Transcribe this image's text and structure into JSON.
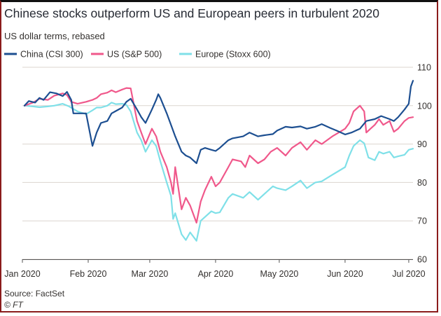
{
  "header": {
    "title": "Chinese stocks outperform US and European peers in turbulent 2020",
    "subtitle": "US dollar terms, rebased"
  },
  "footer": {
    "source": "Source: FactSet",
    "credit": "© FT"
  },
  "colors": {
    "china": "#1d4f91",
    "us": "#f0588b",
    "europe": "#7fe0e8",
    "grid": "#dcd5cf",
    "axis": "#555555",
    "text": "#33302e"
  },
  "chart_data": {
    "type": "line",
    "title": "Chinese stocks outperform US and European peers in turbulent 2020",
    "subtitle": "US dollar terms, rebased",
    "xlim": [
      "2020-01-01",
      "2020-07-03"
    ],
    "ylim": [
      60,
      110
    ],
    "yticks": [
      60,
      70,
      80,
      90,
      100,
      110
    ],
    "xticks": [
      {
        "date": "2020-01-01",
        "label": "Jan 2020"
      },
      {
        "date": "2020-02-01",
        "label": "Feb 2020"
      },
      {
        "date": "2020-03-01",
        "label": "Mar 2020"
      },
      {
        "date": "2020-04-01",
        "label": "Apr 2020"
      },
      {
        "date": "2020-05-01",
        "label": "May 2020"
      },
      {
        "date": "2020-06-01",
        "label": "Jun 2020"
      },
      {
        "date": "2020-07-01",
        "label": "Jul 2020"
      }
    ],
    "grid": true,
    "legend": "top-left",
    "series": [
      {
        "name": "China (CSI 300)",
        "color_key": "china",
        "points": [
          [
            "2020-01-02",
            100.0
          ],
          [
            "2020-01-04",
            101.2
          ],
          [
            "2020-01-07",
            100.8
          ],
          [
            "2020-01-09",
            102.0
          ],
          [
            "2020-01-11",
            101.5
          ],
          [
            "2020-01-14",
            103.5
          ],
          [
            "2020-01-17",
            103.2
          ],
          [
            "2020-01-20",
            102.5
          ],
          [
            "2020-01-22",
            103.6
          ],
          [
            "2020-01-24",
            101.5
          ],
          [
            "2020-01-25",
            98.0
          ],
          [
            "2020-01-29",
            98.0
          ],
          [
            "2020-01-31",
            98.0
          ],
          [
            "2020-02-03",
            89.5
          ],
          [
            "2020-02-05",
            93.0
          ],
          [
            "2020-02-07",
            95.5
          ],
          [
            "2020-02-10",
            96.0
          ],
          [
            "2020-02-12",
            98.0
          ],
          [
            "2020-02-14",
            98.6
          ],
          [
            "2020-02-17",
            99.5
          ],
          [
            "2020-02-19",
            101.0
          ],
          [
            "2020-02-21",
            101.8
          ],
          [
            "2020-02-24",
            99.0
          ],
          [
            "2020-02-26",
            97.0
          ],
          [
            "2020-02-28",
            95.5
          ],
          [
            "2020-03-02",
            99.0
          ],
          [
            "2020-03-04",
            101.5
          ],
          [
            "2020-03-05",
            103.0
          ],
          [
            "2020-03-06",
            102.0
          ],
          [
            "2020-03-09",
            98.0
          ],
          [
            "2020-03-11",
            95.0
          ],
          [
            "2020-03-13",
            92.0
          ],
          [
            "2020-03-16",
            88.0
          ],
          [
            "2020-03-18",
            87.0
          ],
          [
            "2020-03-20",
            86.5
          ],
          [
            "2020-03-23",
            85.0
          ],
          [
            "2020-03-25",
            88.5
          ],
          [
            "2020-03-27",
            89.0
          ],
          [
            "2020-03-30",
            88.5
          ],
          [
            "2020-04-01",
            88.2
          ],
          [
            "2020-04-03",
            89.0
          ],
          [
            "2020-04-07",
            91.0
          ],
          [
            "2020-04-09",
            91.5
          ],
          [
            "2020-04-14",
            92.0
          ],
          [
            "2020-04-17",
            93.0
          ],
          [
            "2020-04-21",
            92.0
          ],
          [
            "2020-04-24",
            92.3
          ],
          [
            "2020-04-28",
            92.6
          ],
          [
            "2020-04-30",
            93.5
          ],
          [
            "2020-05-04",
            94.5
          ],
          [
            "2020-05-07",
            94.3
          ],
          [
            "2020-05-11",
            94.6
          ],
          [
            "2020-05-14",
            94.0
          ],
          [
            "2020-05-18",
            94.5
          ],
          [
            "2020-05-21",
            95.2
          ],
          [
            "2020-05-25",
            94.2
          ],
          [
            "2020-05-28",
            93.5
          ],
          [
            "2020-06-01",
            92.5
          ],
          [
            "2020-06-04",
            93.0
          ],
          [
            "2020-06-08",
            94.0
          ],
          [
            "2020-06-11",
            96.0
          ],
          [
            "2020-06-15",
            96.5
          ],
          [
            "2020-06-18",
            97.3
          ],
          [
            "2020-06-22",
            96.5
          ],
          [
            "2020-06-24",
            96.0
          ],
          [
            "2020-06-26",
            97.0
          ],
          [
            "2020-06-29",
            99.0
          ],
          [
            "2020-07-01",
            100.5
          ],
          [
            "2020-07-02",
            105.0
          ],
          [
            "2020-07-03",
            106.5
          ]
        ]
      },
      {
        "name": "US (S&P 500)",
        "color_key": "us",
        "points": [
          [
            "2020-01-02",
            100.0
          ],
          [
            "2020-01-06",
            100.8
          ],
          [
            "2020-01-09",
            101.8
          ],
          [
            "2020-01-13",
            101.5
          ],
          [
            "2020-01-16",
            102.6
          ],
          [
            "2020-01-20",
            103.2
          ],
          [
            "2020-01-22",
            102.8
          ],
          [
            "2020-01-24",
            101.0
          ],
          [
            "2020-01-27",
            100.5
          ],
          [
            "2020-01-31",
            101.0
          ],
          [
            "2020-02-03",
            101.5
          ],
          [
            "2020-02-05",
            102.0
          ],
          [
            "2020-02-07",
            103.0
          ],
          [
            "2020-02-10",
            103.4
          ],
          [
            "2020-02-12",
            104.0
          ],
          [
            "2020-02-14",
            103.5
          ],
          [
            "2020-02-17",
            104.2
          ],
          [
            "2020-02-19",
            104.6
          ],
          [
            "2020-02-21",
            104.5
          ],
          [
            "2020-02-24",
            96.0
          ],
          [
            "2020-02-26",
            93.0
          ],
          [
            "2020-02-28",
            90.0
          ],
          [
            "2020-03-02",
            94.0
          ],
          [
            "2020-03-04",
            92.0
          ],
          [
            "2020-03-06",
            88.0
          ],
          [
            "2020-03-09",
            84.0
          ],
          [
            "2020-03-11",
            80.0
          ],
          [
            "2020-03-12",
            77.0
          ],
          [
            "2020-03-13",
            84.0
          ],
          [
            "2020-03-16",
            73.0
          ],
          [
            "2020-03-18",
            76.0
          ],
          [
            "2020-03-20",
            74.0
          ],
          [
            "2020-03-23",
            69.5
          ],
          [
            "2020-03-25",
            75.0
          ],
          [
            "2020-03-27",
            78.0
          ],
          [
            "2020-03-30",
            81.5
          ],
          [
            "2020-04-01",
            79.0
          ],
          [
            "2020-04-03",
            80.0
          ],
          [
            "2020-04-07",
            84.0
          ],
          [
            "2020-04-09",
            86.0
          ],
          [
            "2020-04-13",
            85.5
          ],
          [
            "2020-04-15",
            84.0
          ],
          [
            "2020-04-17",
            87.0
          ],
          [
            "2020-04-21",
            85.0
          ],
          [
            "2020-04-24",
            86.0
          ],
          [
            "2020-04-27",
            88.0
          ],
          [
            "2020-04-30",
            89.0
          ],
          [
            "2020-05-04",
            87.0
          ],
          [
            "2020-05-07",
            89.0
          ],
          [
            "2020-05-11",
            90.5
          ],
          [
            "2020-05-14",
            88.5
          ],
          [
            "2020-05-18",
            91.0
          ],
          [
            "2020-05-21",
            90.0
          ],
          [
            "2020-05-26",
            92.0
          ],
          [
            "2020-05-29",
            93.0
          ],
          [
            "2020-06-01",
            94.0
          ],
          [
            "2020-06-03",
            95.5
          ],
          [
            "2020-06-05",
            98.5
          ],
          [
            "2020-06-08",
            100.0
          ],
          [
            "2020-06-10",
            98.5
          ],
          [
            "2020-06-11",
            93.0
          ],
          [
            "2020-06-13",
            94.0
          ],
          [
            "2020-06-15",
            95.0
          ],
          [
            "2020-06-17",
            96.5
          ],
          [
            "2020-06-19",
            95.0
          ],
          [
            "2020-06-22",
            96.0
          ],
          [
            "2020-06-24",
            93.2
          ],
          [
            "2020-06-26",
            94.0
          ],
          [
            "2020-06-29",
            96.0
          ],
          [
            "2020-07-01",
            96.8
          ],
          [
            "2020-07-03",
            97.0
          ]
        ]
      },
      {
        "name": "Europe (Stoxx 600)",
        "color_key": "europe",
        "points": [
          [
            "2020-01-02",
            100.0
          ],
          [
            "2020-01-06",
            99.8
          ],
          [
            "2020-01-09",
            99.6
          ],
          [
            "2020-01-13",
            99.8
          ],
          [
            "2020-01-16",
            100.0
          ],
          [
            "2020-01-20",
            100.5
          ],
          [
            "2020-01-23",
            99.8
          ],
          [
            "2020-01-27",
            98.5
          ],
          [
            "2020-01-31",
            97.8
          ],
          [
            "2020-02-03",
            98.8
          ],
          [
            "2020-02-05",
            99.5
          ],
          [
            "2020-02-07",
            99.5
          ],
          [
            "2020-02-10",
            100.0
          ],
          [
            "2020-02-12",
            100.8
          ],
          [
            "2020-02-14",
            100.4
          ],
          [
            "2020-02-17",
            100.5
          ],
          [
            "2020-02-19",
            100.2
          ],
          [
            "2020-02-21",
            98.5
          ],
          [
            "2020-02-24",
            93.0
          ],
          [
            "2020-02-26",
            91.0
          ],
          [
            "2020-02-28",
            88.0
          ],
          [
            "2020-03-02",
            91.0
          ],
          [
            "2020-03-04",
            89.5
          ],
          [
            "2020-03-06",
            85.5
          ],
          [
            "2020-03-09",
            80.0
          ],
          [
            "2020-03-11",
            76.5
          ],
          [
            "2020-03-12",
            70.5
          ],
          [
            "2020-03-13",
            72.0
          ],
          [
            "2020-03-16",
            66.5
          ],
          [
            "2020-03-18",
            65.0
          ],
          [
            "2020-03-20",
            67.0
          ],
          [
            "2020-03-23",
            64.8
          ],
          [
            "2020-03-25",
            70.0
          ],
          [
            "2020-03-27",
            71.0
          ],
          [
            "2020-03-30",
            72.5
          ],
          [
            "2020-04-01",
            72.0
          ],
          [
            "2020-04-03",
            72.2
          ],
          [
            "2020-04-07",
            76.0
          ],
          [
            "2020-04-09",
            77.0
          ],
          [
            "2020-04-14",
            76.0
          ],
          [
            "2020-04-17",
            77.5
          ],
          [
            "2020-04-21",
            75.5
          ],
          [
            "2020-04-24",
            77.0
          ],
          [
            "2020-04-28",
            79.0
          ],
          [
            "2020-04-30",
            78.5
          ],
          [
            "2020-05-04",
            78.0
          ],
          [
            "2020-05-07",
            79.0
          ],
          [
            "2020-05-11",
            80.5
          ],
          [
            "2020-05-14",
            78.5
          ],
          [
            "2020-05-18",
            80.0
          ],
          [
            "2020-05-21",
            80.3
          ],
          [
            "2020-05-26",
            82.0
          ],
          [
            "2020-05-29",
            83.0
          ],
          [
            "2020-06-01",
            84.0
          ],
          [
            "2020-06-03",
            87.0
          ],
          [
            "2020-06-05",
            89.5
          ],
          [
            "2020-06-08",
            91.0
          ],
          [
            "2020-06-10",
            90.2
          ],
          [
            "2020-06-12",
            86.5
          ],
          [
            "2020-06-15",
            85.8
          ],
          [
            "2020-06-17",
            88.0
          ],
          [
            "2020-06-19",
            87.5
          ],
          [
            "2020-06-22",
            88.0
          ],
          [
            "2020-06-24",
            86.5
          ],
          [
            "2020-06-26",
            86.8
          ],
          [
            "2020-06-29",
            87.2
          ],
          [
            "2020-07-01",
            88.5
          ],
          [
            "2020-07-03",
            88.8
          ]
        ]
      }
    ]
  }
}
